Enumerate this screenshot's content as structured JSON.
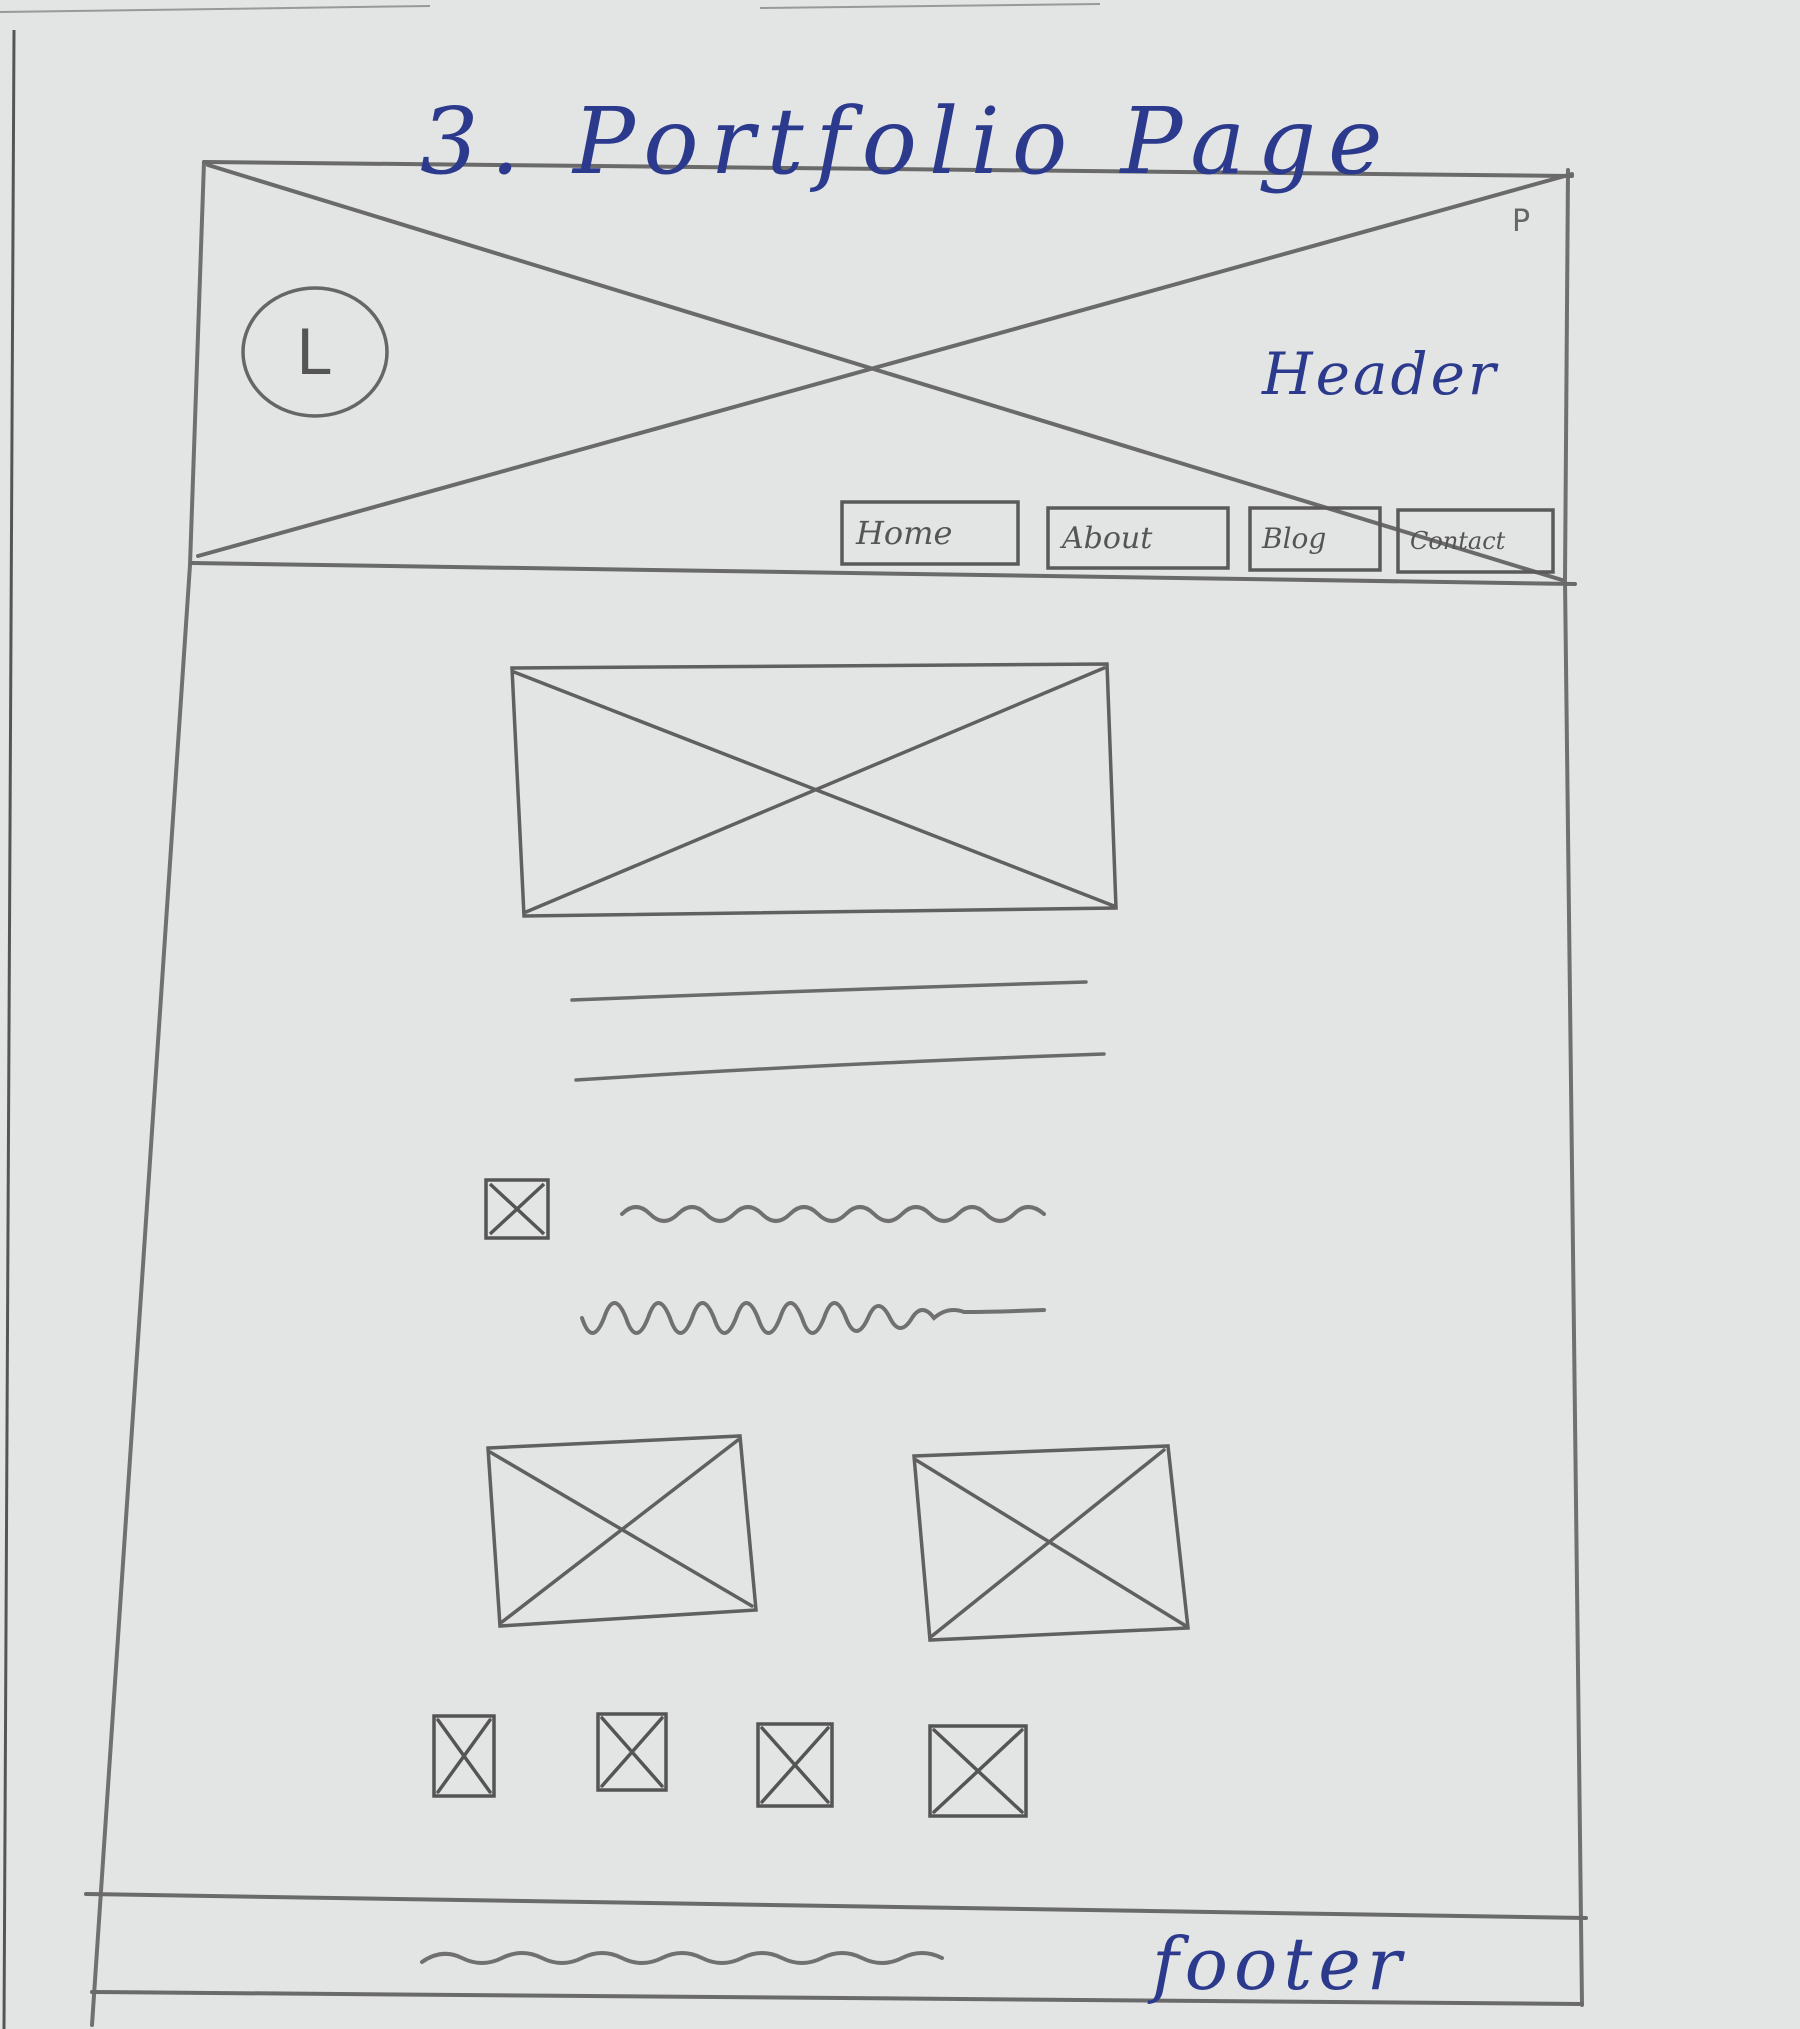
{
  "sketch": {
    "title": "3. Portfolio Page",
    "logo_letter": "L",
    "header_label": "Header",
    "footer_label": "footer",
    "corner_mark": "P",
    "nav": [
      {
        "label": "Home"
      },
      {
        "label": "About"
      },
      {
        "label": "Blog"
      },
      {
        "label": "Contact"
      }
    ],
    "colors": {
      "pencil": "#6f6f6f",
      "ink": "#2b3a8c",
      "paper": "#e3e4e4"
    }
  }
}
